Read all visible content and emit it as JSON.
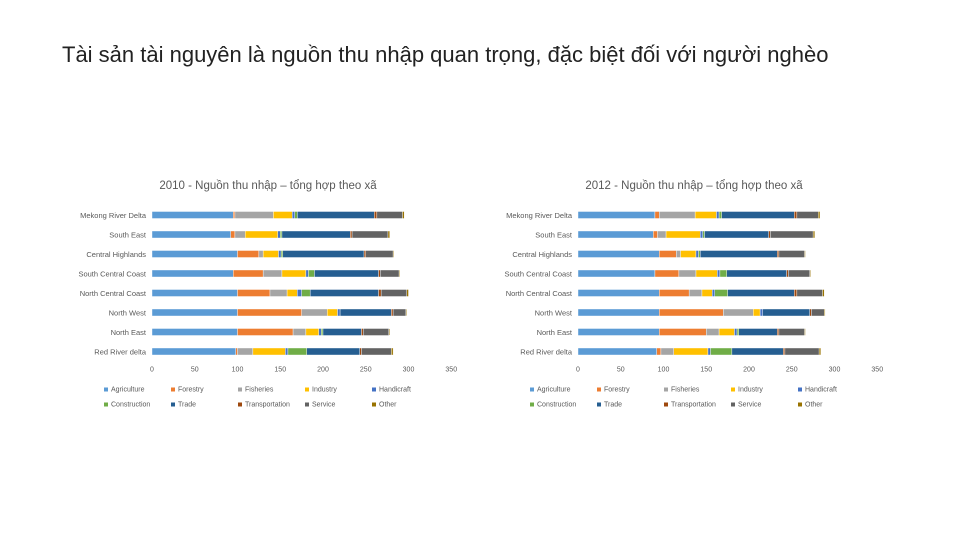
{
  "slide": {
    "title": "Tài sản tài nguyên là nguồn thu nhập quan trọng, đặc biệt đối với người nghèo"
  },
  "colors": {
    "Agriculture": "#5b9bd5",
    "Forestry": "#ed7d31",
    "Fisheries": "#a5a5a5",
    "Industry": "#ffc000",
    "Handicraft": "#4472c4",
    "Construction": "#70ad47",
    "Trade": "#255e91",
    "Transportation": "#9e480e",
    "Service": "#636363",
    "Other": "#997300"
  },
  "chart_data": [
    {
      "type": "bar",
      "orientation": "horizontal",
      "stacked": true,
      "title": "2010 - Nguồn thu nhập – tổng hợp theo xã",
      "categories": [
        "Mekong River Delta",
        "South East",
        "Central Highlands",
        "South Central Coast",
        "North Central Coast",
        "North West",
        "North East",
        "Red River delta"
      ],
      "xlim": [
        0,
        350
      ],
      "xticks": [
        0,
        50,
        100,
        150,
        200,
        250,
        300,
        350
      ],
      "legend_position": "bottom",
      "series": [
        {
          "name": "Agriculture",
          "values": [
            95,
            92,
            100,
            95,
            100,
            100,
            100,
            98
          ]
        },
        {
          "name": "Forestry",
          "values": [
            2,
            5,
            25,
            35,
            38,
            75,
            65,
            2
          ]
        },
        {
          "name": "Fisheries",
          "values": [
            45,
            12,
            5,
            22,
            20,
            30,
            15,
            18
          ]
        },
        {
          "name": "Industry",
          "values": [
            22,
            38,
            18,
            28,
            12,
            12,
            15,
            38
          ]
        },
        {
          "name": "Handicraft",
          "values": [
            3,
            3,
            3,
            3,
            5,
            3,
            3,
            3
          ]
        },
        {
          "name": "Construction",
          "values": [
            3,
            2,
            2,
            7,
            10,
            0,
            2,
            22
          ]
        },
        {
          "name": "Trade",
          "values": [
            90,
            80,
            95,
            75,
            80,
            60,
            45,
            62
          ]
        },
        {
          "name": "Transportation",
          "values": [
            3,
            2,
            2,
            2,
            3,
            2,
            2,
            2
          ]
        },
        {
          "name": "Service",
          "values": [
            30,
            42,
            32,
            22,
            30,
            15,
            30,
            35
          ]
        },
        {
          "name": "Other",
          "values": [
            2,
            2,
            1,
            1,
            2,
            1,
            1,
            2
          ]
        }
      ]
    },
    {
      "type": "bar",
      "orientation": "horizontal",
      "stacked": true,
      "title": "2012 - Nguồn thu nhập – tổng hợp theo xã",
      "categories": [
        "Mekong River Delta",
        "South East",
        "Central Highlands",
        "South Central Coast",
        "North Central Coast",
        "North West",
        "North East",
        "Red River delta"
      ],
      "xlim": [
        0,
        350
      ],
      "xticks": [
        0,
        50,
        100,
        150,
        200,
        250,
        300,
        350
      ],
      "legend_position": "bottom",
      "series": [
        {
          "name": "Agriculture",
          "values": [
            90,
            88,
            95,
            90,
            95,
            95,
            95,
            92
          ]
        },
        {
          "name": "Forestry",
          "values": [
            5,
            5,
            20,
            28,
            35,
            75,
            55,
            5
          ]
        },
        {
          "name": "Fisheries",
          "values": [
            42,
            10,
            5,
            20,
            15,
            35,
            15,
            15
          ]
        },
        {
          "name": "Industry",
          "values": [
            25,
            40,
            18,
            25,
            12,
            8,
            18,
            40
          ]
        },
        {
          "name": "Handicraft",
          "values": [
            3,
            3,
            3,
            3,
            3,
            3,
            3,
            3
          ]
        },
        {
          "name": "Construction",
          "values": [
            3,
            2,
            2,
            8,
            15,
            0,
            2,
            25
          ]
        },
        {
          "name": "Trade",
          "values": [
            85,
            75,
            90,
            70,
            78,
            55,
            45,
            60
          ]
        },
        {
          "name": "Transportation",
          "values": [
            3,
            2,
            2,
            2,
            3,
            2,
            2,
            2
          ]
        },
        {
          "name": "Service",
          "values": [
            25,
            50,
            30,
            25,
            30,
            15,
            30,
            40
          ]
        },
        {
          "name": "Other",
          "values": [
            2,
            2,
            1,
            1,
            2,
            1,
            1,
            2
          ]
        }
      ]
    }
  ]
}
